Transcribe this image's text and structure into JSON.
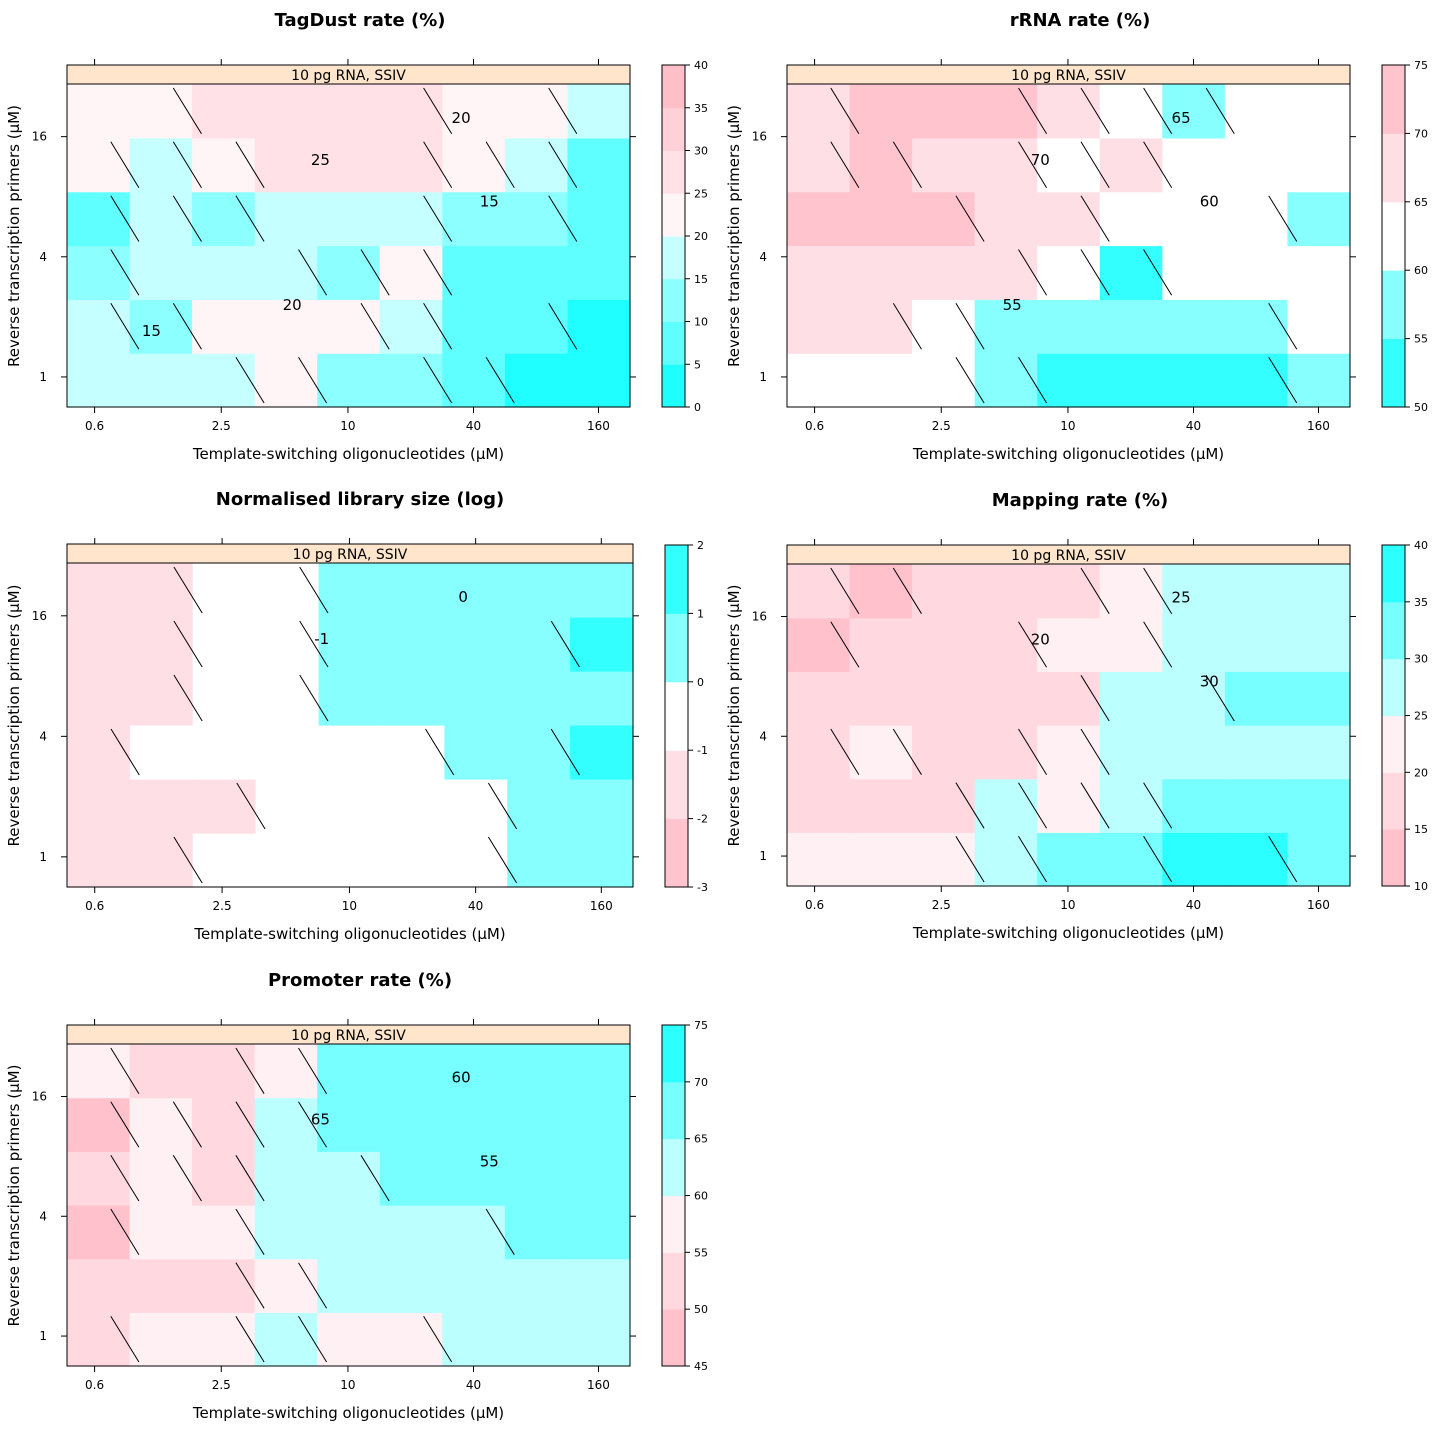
{
  "palette": {
    "pink_strong": "#ffb6c1",
    "pink_mid": "#ffc0cb",
    "pink_light": "#ffd8e0",
    "pink_pale": "#ffeef1",
    "white": "#ffffff",
    "cyan_pale": "#ccffff",
    "cyan_light": "#99ffff",
    "cyan_mid": "#66ffff",
    "cyan_strong": "#00ffff",
    "strip": "#ffe5cc"
  },
  "chart_data": [
    {
      "type": "heatmap",
      "title": "TagDust rate (%)",
      "strip": "10 pg RNA, SSIV",
      "xlabel": "Template-switching oligonucleotides (μM)",
      "ylabel": "Reverse transcription primers (μM)",
      "x_ticks": [
        "0.6",
        "2.5",
        "10",
        "40",
        "160"
      ],
      "y_ticks": [
        "1",
        "4",
        "16"
      ],
      "colorbar_ticks": [
        "0",
        "5",
        "10",
        "15",
        "20",
        "25",
        "30",
        "35",
        "40"
      ],
      "colorbar_range": [
        0,
        40
      ],
      "contour_labels": [
        "25",
        "20",
        "15",
        "20",
        "15"
      ],
      "values": [
        [
          17,
          17,
          17,
          22,
          12,
          10,
          5,
          4,
          3
        ],
        [
          18,
          11,
          21,
          21,
          21,
          17,
          8,
          5,
          2
        ],
        [
          10,
          18,
          18,
          18,
          12,
          22,
          9,
          6,
          6
        ],
        [
          9,
          18,
          12,
          17,
          18,
          17,
          12,
          12,
          8
        ],
        [
          21,
          18,
          22,
          27,
          28,
          27,
          20,
          19,
          6
        ],
        [
          23,
          24,
          26,
          28,
          28,
          25,
          24,
          22,
          17
        ]
      ]
    },
    {
      "type": "heatmap",
      "title": "rRNA rate (%)",
      "strip": "10 pg RNA, SSIV",
      "xlabel": "Template-switching oligonucleotides (μM)",
      "ylabel": "Reverse transcription primers (μM)",
      "x_ticks": [
        "0.6",
        "2.5",
        "10",
        "40",
        "160"
      ],
      "y_ticks": [
        "1",
        "4",
        "16"
      ],
      "colorbar_ticks": [
        "50",
        "55",
        "60",
        "65",
        "70",
        "75"
      ],
      "colorbar_range": [
        50,
        75
      ],
      "contour_labels": [
        "70",
        "65",
        "60",
        "55"
      ],
      "values": [
        [
          62,
          62,
          62,
          58,
          52,
          52,
          52,
          52,
          57
        ],
        [
          67,
          67,
          62,
          57,
          57,
          57,
          57,
          57,
          62
        ],
        [
          67,
          67,
          67,
          67,
          62,
          52,
          62,
          62,
          62
        ],
        [
          71,
          71,
          71,
          67,
          67,
          62,
          62,
          62,
          57
        ],
        [
          67,
          71,
          67,
          67,
          62,
          67,
          62,
          62,
          62
        ],
        [
          67,
          71,
          71,
          71,
          67,
          62,
          57,
          62,
          62
        ]
      ]
    },
    {
      "type": "heatmap",
      "title": "Normalised library size (log)",
      "strip": "10 pg RNA, SSIV",
      "xlabel": "Template-switching oligonucleotides (μM)",
      "ylabel": "Reverse transcription primers (μM)",
      "x_ticks": [
        "0.6",
        "2.5",
        "10",
        "40",
        "160"
      ],
      "y_ticks": [
        "1",
        "4",
        "16"
      ],
      "colorbar_ticks": [
        "-3",
        "-2",
        "-1",
        "0",
        "1",
        "2"
      ],
      "colorbar_range": [
        -3,
        2
      ],
      "contour_labels": [
        "-1",
        "0"
      ],
      "values": [
        [
          -1.5,
          -1.5,
          -0.5,
          -0.5,
          -0.5,
          -0.5,
          -0.5,
          0.5,
          0.5
        ],
        [
          -1.5,
          -1.5,
          -1.5,
          -0.5,
          -0.5,
          -0.5,
          -0.5,
          0.5,
          0.5
        ],
        [
          -1.5,
          -0.5,
          -0.5,
          -0.5,
          -0.5,
          -0.5,
          0.5,
          0.5,
          1.5
        ],
        [
          -1.5,
          -1.5,
          -0.5,
          -0.5,
          0.5,
          0.5,
          0.5,
          0.5,
          0.5
        ],
        [
          -1.5,
          -1.5,
          -0.5,
          -0.5,
          0.5,
          0.5,
          0.5,
          0.5,
          1.5
        ],
        [
          -1.5,
          -1.5,
          -0.5,
          -0.5,
          0.5,
          0.5,
          0.5,
          0.5,
          0.5
        ]
      ]
    },
    {
      "type": "heatmap",
      "title": "Mapping rate (%)",
      "strip": "10 pg RNA, SSIV",
      "xlabel": "Template-switching oligonucleotides (μM)",
      "ylabel": "Reverse transcription primers (μM)",
      "x_ticks": [
        "0.6",
        "2.5",
        "10",
        "40",
        "160"
      ],
      "y_ticks": [
        "1",
        "4",
        "16"
      ],
      "colorbar_ticks": [
        "10",
        "15",
        "20",
        "25",
        "30",
        "35",
        "40"
      ],
      "colorbar_range": [
        10,
        40
      ],
      "contour_labels": [
        "20",
        "25",
        "30"
      ],
      "values": [
        [
          22,
          22,
          22,
          27,
          32,
          32,
          37,
          37,
          32
        ],
        [
          17,
          17,
          17,
          27,
          22,
          27,
          32,
          32,
          32
        ],
        [
          17,
          22,
          17,
          17,
          22,
          27,
          27,
          27,
          27
        ],
        [
          17,
          17,
          17,
          17,
          17,
          27,
          27,
          32,
          32
        ],
        [
          13,
          17,
          17,
          17,
          22,
          22,
          27,
          27,
          27
        ],
        [
          17,
          13,
          17,
          17,
          17,
          22,
          27,
          27,
          27
        ]
      ]
    },
    {
      "type": "heatmap",
      "title": "Promoter rate (%)",
      "strip": "10 pg RNA, SSIV",
      "xlabel": "Template-switching oligonucleotides (μM)",
      "ylabel": "Reverse transcription primers (μM)",
      "x_ticks": [
        "0.6",
        "2.5",
        "10",
        "40",
        "160"
      ],
      "y_ticks": [
        "1",
        "4",
        "16"
      ],
      "colorbar_ticks": [
        "45",
        "50",
        "55",
        "60",
        "65",
        "70",
        "75"
      ],
      "colorbar_range": [
        45,
        75
      ],
      "contour_labels": [
        "65",
        "60",
        "55"
      ],
      "values": [
        [
          52,
          57,
          57,
          62,
          57,
          57,
          62,
          62,
          62
        ],
        [
          52,
          52,
          52,
          57,
          62,
          62,
          62,
          62,
          62
        ],
        [
          47,
          57,
          57,
          62,
          62,
          62,
          62,
          67,
          67
        ],
        [
          52,
          57,
          52,
          62,
          62,
          67,
          67,
          67,
          67
        ],
        [
          47,
          57,
          52,
          62,
          67,
          67,
          67,
          67,
          67
        ],
        [
          57,
          52,
          52,
          57,
          67,
          67,
          67,
          67,
          67
        ]
      ]
    }
  ]
}
